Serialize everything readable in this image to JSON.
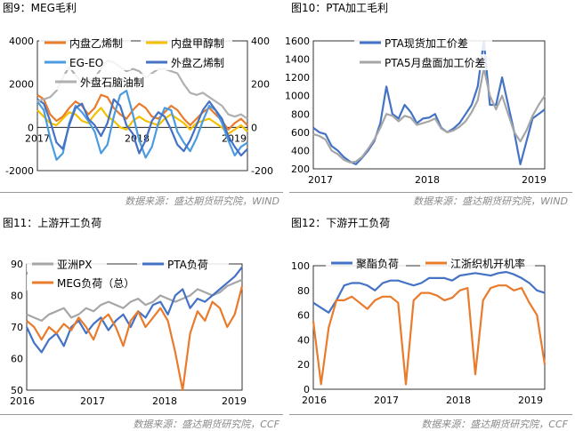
{
  "panels": [
    {
      "title": "图9：MEG毛利",
      "source": "数据来源：盛达期货研究院，WIND"
    },
    {
      "title": "图10：PTA加工毛利",
      "source": "数据来源：盛达期货研究院，WIND"
    },
    {
      "title": "图11：上游开工负荷",
      "source": "数据来源：盛达期货研究院，CCF"
    },
    {
      "title": "图12：下游开工负荷",
      "source": "数据来源：盛达期货研究院，CCF"
    }
  ],
  "chart_data": [
    {
      "type": "line",
      "title": "图9：MEG毛利",
      "x_ticks": [
        "2017",
        "2018",
        "2019"
      ],
      "y_left_range": [
        -2000,
        4000
      ],
      "y_left_ticks": [
        -2000,
        0,
        2000,
        4000
      ],
      "y_right_range": [
        -200,
        400
      ],
      "y_right_ticks": [
        -200,
        0,
        200,
        400
      ],
      "legend": "upper-left, two columns",
      "series": [
        {
          "name": "内盘乙烯制",
          "axis": "left",
          "color": "#E97B2C",
          "values": [
            1500,
            1300,
            600,
            300,
            500,
            900,
            1200,
            1000,
            600,
            900,
            1500,
            1400,
            900,
            600,
            400,
            800,
            1100,
            900,
            500,
            400,
            700,
            1000,
            800,
            400,
            100,
            400,
            700,
            900,
            600,
            300,
            -100,
            200,
            400,
            100
          ]
        },
        {
          "name": "内盘甲醇制",
          "axis": "left",
          "color": "#F5C000",
          "values": [
            800,
            500,
            200,
            100,
            400,
            700,
            600,
            300,
            200,
            600,
            900,
            500,
            300,
            0,
            -100,
            300,
            500,
            300,
            200,
            100,
            400,
            600,
            400,
            200,
            -100,
            200,
            300,
            400,
            200,
            0,
            -300,
            -100,
            100,
            -200
          ]
        },
        {
          "name": "EG-EO",
          "axis": "left",
          "color": "#4B9BE0",
          "values": [
            1200,
            800,
            -500,
            -1500,
            -1200,
            200,
            1000,
            700,
            300,
            -200,
            -1200,
            -800,
            500,
            1500,
            1700,
            600,
            -600,
            -1400,
            -900,
            200,
            900,
            800,
            -200,
            -700,
            -1100,
            -500,
            300,
            1000,
            800,
            200,
            -600,
            -1300,
            -900,
            -700
          ]
        },
        {
          "name": "外盘乙烯制",
          "axis": "left",
          "color": "#4472C4",
          "values": [
            1300,
            1100,
            300,
            -700,
            -1000,
            100,
            900,
            1100,
            400,
            100,
            -400,
            200,
            1300,
            1000,
            100,
            -300,
            -1200,
            -600,
            300,
            700,
            500,
            -100,
            -800,
            -1100,
            -600,
            100,
            800,
            1200,
            800,
            400,
            -400,
            -900,
            -1300,
            -1000
          ]
        },
        {
          "name": "外盘石脑油制",
          "axis": "right",
          "color": "#B0B0B0",
          "values": [
            120,
            130,
            140,
            170,
            230,
            280,
            240,
            210,
            220,
            230,
            270,
            310,
            300,
            280,
            260,
            270,
            260,
            230,
            250,
            270,
            270,
            260,
            250,
            200,
            160,
            150,
            160,
            140,
            120,
            100,
            60,
            50,
            60,
            40
          ]
        }
      ]
    },
    {
      "type": "line",
      "title": "图10：PTA加工毛利",
      "x_ticks": [
        "2017",
        "2018",
        "2019"
      ],
      "y_range": [
        200,
        1600
      ],
      "y_ticks": [
        200,
        400,
        600,
        800,
        1000,
        1200,
        1400,
        1600
      ],
      "legend": "top-left",
      "series": [
        {
          "name": "PTA现货加工价差",
          "color": "#4472C4",
          "values": [
            650,
            600,
            580,
            450,
            400,
            330,
            280,
            250,
            320,
            400,
            500,
            700,
            1100,
            800,
            750,
            900,
            820,
            700,
            750,
            760,
            800,
            650,
            600,
            640,
            700,
            800,
            900,
            1100,
            1600,
            900,
            900,
            1200,
            900,
            600,
            250,
            500,
            750,
            800,
            850
          ]
        },
        {
          "name": "PTA5月盘面加工价差",
          "color": "#A6A6A6",
          "values": [
            580,
            560,
            520,
            400,
            360,
            300,
            270,
            280,
            330,
            420,
            520,
            650,
            800,
            780,
            720,
            780,
            760,
            680,
            700,
            720,
            750,
            640,
            600,
            620,
            660,
            720,
            820,
            950,
            1300,
            1000,
            850,
            1000,
            800,
            600,
            500,
            620,
            780,
            900,
            1000
          ]
        }
      ]
    },
    {
      "type": "line",
      "title": "图11：上游开工负荷",
      "x_ticks": [
        "2016",
        "2017",
        "2018",
        "2019"
      ],
      "y_range": [
        50,
        90
      ],
      "y_ticks": [
        50,
        60,
        70,
        80,
        90
      ],
      "legend": "top, two columns",
      "series": [
        {
          "name": "亚洲PX",
          "color": "#A6A6A6",
          "values": [
            74,
            73,
            72,
            74,
            75,
            76,
            73,
            74,
            76,
            75,
            77,
            78,
            77,
            76,
            78,
            79,
            77,
            78,
            80,
            79,
            78,
            79,
            80,
            82,
            81,
            80,
            81,
            83,
            84,
            85
          ]
        },
        {
          "name": "PTA负荷",
          "color": "#4472C4",
          "values": [
            70,
            65,
            62,
            66,
            68,
            64,
            70,
            72,
            68,
            71,
            73,
            69,
            72,
            74,
            70,
            75,
            73,
            77,
            78,
            74,
            80,
            82,
            76,
            79,
            78,
            80,
            82,
            84,
            86,
            89
          ]
        },
        {
          "name": "MEG负荷（总）",
          "color": "#E97B2C",
          "values": [
            72,
            70,
            66,
            70,
            68,
            71,
            69,
            73,
            70,
            66,
            72,
            74,
            70,
            64,
            72,
            75,
            70,
            73,
            76,
            72,
            62,
            50,
            68,
            75,
            72,
            78,
            76,
            70,
            74,
            83
          ]
        }
      ]
    },
    {
      "type": "line",
      "title": "图12：下游开工负荷",
      "x_ticks": [
        "2016",
        "2017",
        "2018",
        "2019"
      ],
      "y_range": [
        0,
        100
      ],
      "y_ticks": [
        0,
        20,
        40,
        60,
        80,
        100
      ],
      "legend": "top",
      "series": [
        {
          "name": "聚酯负荷",
          "color": "#4472C4",
          "values": [
            70,
            66,
            62,
            72,
            84,
            86,
            86,
            84,
            80,
            86,
            88,
            88,
            86,
            84,
            86,
            90,
            90,
            90,
            88,
            92,
            93,
            94,
            93,
            92,
            94,
            95,
            93,
            90,
            86,
            80,
            78
          ]
        },
        {
          "name": "江浙织机开机率",
          "color": "#E97B2C",
          "values": [
            55,
            4,
            50,
            72,
            72,
            75,
            70,
            65,
            72,
            75,
            75,
            70,
            4,
            72,
            78,
            78,
            76,
            72,
            74,
            80,
            82,
            12,
            72,
            82,
            84,
            84,
            80,
            82,
            70,
            60,
            20
          ]
        }
      ]
    }
  ]
}
